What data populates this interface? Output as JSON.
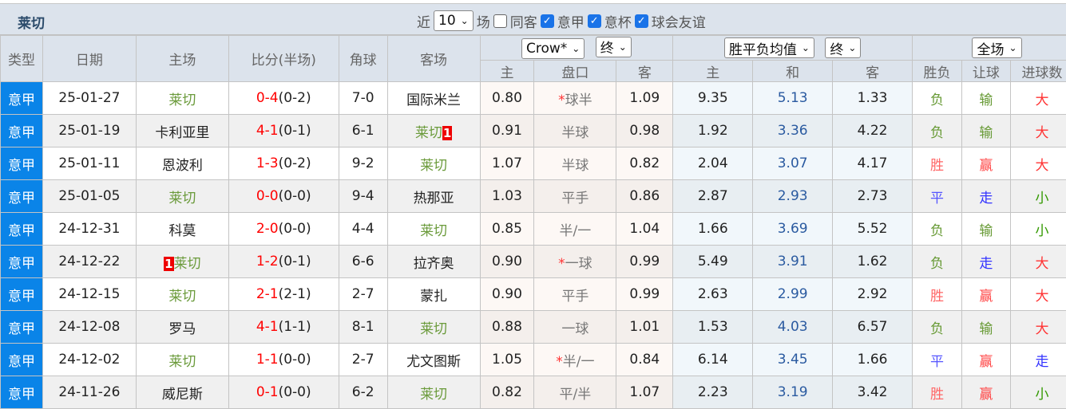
{
  "header": {
    "team": "莱切",
    "near_label": "近",
    "count": "10",
    "games_label": "场",
    "same_away_label": "同客",
    "filters": [
      {
        "label": "意甲",
        "checked": true
      },
      {
        "label": "意杯",
        "checked": true
      },
      {
        "label": "球会友谊",
        "checked": true
      }
    ]
  },
  "selects": {
    "company": "Crow*",
    "ah_type": "终",
    "euro_company": "胜平负均值",
    "euro_type": "终",
    "period": "全场"
  },
  "columns": {
    "type": "类型",
    "date": "日期",
    "home": "主场",
    "score": "比分(半场)",
    "corner": "角球",
    "away": "客场",
    "ah_home": "主",
    "ah_line": "盘口",
    "ah_away": "客",
    "eu_home": "主",
    "eu_draw": "和",
    "eu_away": "客",
    "result": "胜负",
    "handicap": "让球",
    "goals": "进球数"
  },
  "colors": {
    "win": "#ff6666",
    "lose": "#669933",
    "draw": "#5555ff",
    "big": "#ff3333",
    "small": "#339900",
    "league": "#0a84e8",
    "focus_team": "#6a9a3a"
  },
  "rows": [
    {
      "type": "意甲",
      "date": "25-01-27",
      "home": "莱切",
      "home_rc": "",
      "score": "0-4",
      "half": "(0-2)",
      "corner": "7-0",
      "away": "国际米兰",
      "away_rc": "",
      "ah_h": "0.80",
      "star": "*",
      "ah_line": "球半",
      "ah_a": "1.09",
      "eu_h": "9.35",
      "eu_d": "5.13",
      "eu_a": "1.33",
      "res": "负",
      "hc": "输",
      "goals": "大"
    },
    {
      "type": "意甲",
      "date": "25-01-19",
      "home": "卡利亚里",
      "home_rc": "",
      "score": "4-1",
      "half": "(0-1)",
      "corner": "6-1",
      "away": "莱切",
      "away_rc": "1",
      "ah_h": "0.91",
      "star": "",
      "ah_line": "半球",
      "ah_a": "0.98",
      "eu_h": "1.92",
      "eu_d": "3.36",
      "eu_a": "4.22",
      "res": "负",
      "hc": "输",
      "goals": "大"
    },
    {
      "type": "意甲",
      "date": "25-01-11",
      "home": "恩波利",
      "home_rc": "",
      "score": "1-3",
      "half": "(0-2)",
      "corner": "9-2",
      "away": "莱切",
      "away_rc": "",
      "ah_h": "1.07",
      "star": "",
      "ah_line": "半球",
      "ah_a": "0.82",
      "eu_h": "2.04",
      "eu_d": "3.07",
      "eu_a": "4.17",
      "res": "胜",
      "hc": "赢",
      "goals": "大"
    },
    {
      "type": "意甲",
      "date": "25-01-05",
      "home": "莱切",
      "home_rc": "",
      "score": "0-0",
      "half": "(0-0)",
      "corner": "9-4",
      "away": "热那亚",
      "away_rc": "",
      "ah_h": "1.03",
      "star": "",
      "ah_line": "平手",
      "ah_a": "0.86",
      "eu_h": "2.87",
      "eu_d": "2.93",
      "eu_a": "2.73",
      "res": "平",
      "hc": "走",
      "goals": "小"
    },
    {
      "type": "意甲",
      "date": "24-12-31",
      "home": "科莫",
      "home_rc": "",
      "score": "2-0",
      "half": "(0-0)",
      "corner": "4-4",
      "away": "莱切",
      "away_rc": "",
      "ah_h": "0.85",
      "star": "",
      "ah_line": "半/一",
      "ah_a": "1.04",
      "eu_h": "1.66",
      "eu_d": "3.69",
      "eu_a": "5.52",
      "res": "负",
      "hc": "输",
      "goals": "小"
    },
    {
      "type": "意甲",
      "date": "24-12-22",
      "home": "莱切",
      "home_rc": "1",
      "score": "1-2",
      "half": "(0-1)",
      "corner": "6-6",
      "away": "拉齐奥",
      "away_rc": "",
      "ah_h": "0.90",
      "star": "*",
      "ah_line": "一球",
      "ah_a": "0.99",
      "eu_h": "5.49",
      "eu_d": "3.91",
      "eu_a": "1.62",
      "res": "负",
      "hc": "走",
      "goals": "大"
    },
    {
      "type": "意甲",
      "date": "24-12-15",
      "home": "莱切",
      "home_rc": "",
      "score": "2-1",
      "half": "(2-1)",
      "corner": "2-7",
      "away": "蒙扎",
      "away_rc": "",
      "ah_h": "0.90",
      "star": "",
      "ah_line": "平手",
      "ah_a": "0.99",
      "eu_h": "2.63",
      "eu_d": "2.99",
      "eu_a": "2.92",
      "res": "胜",
      "hc": "赢",
      "goals": "大"
    },
    {
      "type": "意甲",
      "date": "24-12-08",
      "home": "罗马",
      "home_rc": "",
      "score": "4-1",
      "half": "(1-1)",
      "corner": "8-1",
      "away": "莱切",
      "away_rc": "",
      "ah_h": "0.88",
      "star": "",
      "ah_line": "一球",
      "ah_a": "1.01",
      "eu_h": "1.53",
      "eu_d": "4.03",
      "eu_a": "6.57",
      "res": "负",
      "hc": "输",
      "goals": "大"
    },
    {
      "type": "意甲",
      "date": "24-12-02",
      "home": "莱切",
      "home_rc": "",
      "score": "1-1",
      "half": "(0-0)",
      "corner": "2-7",
      "away": "尤文图斯",
      "away_rc": "",
      "ah_h": "1.05",
      "star": "*",
      "ah_line": "半/一",
      "ah_a": "0.84",
      "eu_h": "6.14",
      "eu_d": "3.45",
      "eu_a": "1.66",
      "res": "平",
      "hc": "赢",
      "goals": "走"
    },
    {
      "type": "意甲",
      "date": "24-11-26",
      "home": "威尼斯",
      "home_rc": "",
      "score": "0-1",
      "half": "(0-0)",
      "corner": "6-2",
      "away": "莱切",
      "away_rc": "",
      "ah_h": "0.82",
      "star": "",
      "ah_line": "平/半",
      "ah_a": "1.07",
      "eu_h": "2.23",
      "eu_d": "3.19",
      "eu_a": "3.42",
      "res": "胜",
      "hc": "赢",
      "goals": "小"
    }
  ]
}
